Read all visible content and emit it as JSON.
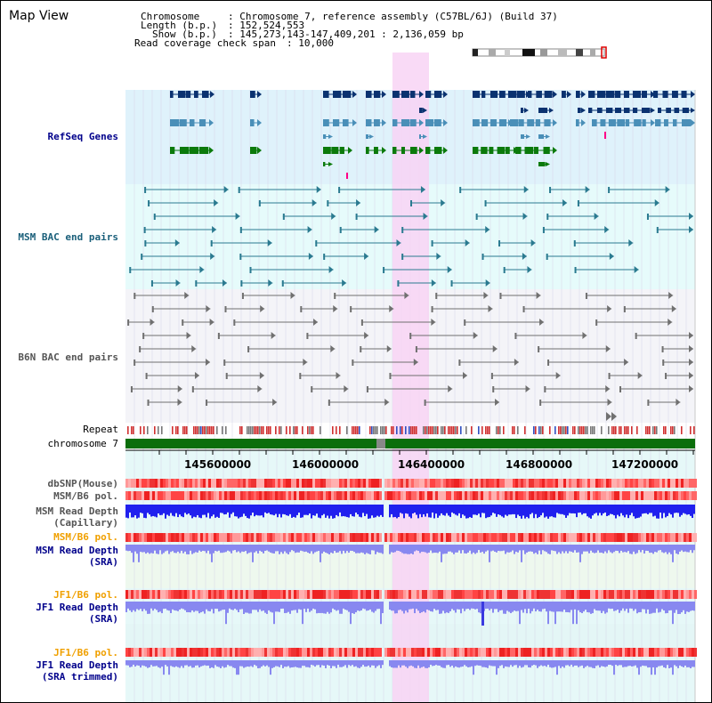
{
  "title": "Map View",
  "header": {
    "chromosome_label": "Chromosome",
    "chromosome_value": ": Chromosome 7, reference assembly (C57BL/6J) (Build 37)",
    "length_label": "Length (b.p.)",
    "length_value": ": 152,524,553",
    "show_label": "Show (b.p.)",
    "show_value": ": 145,273,143-147,409,201 : 2,136,059 bp",
    "span_label": "Read coverage check span",
    "span_value": ": 10,000"
  },
  "tracks": {
    "refseq": "RefSeq Genes",
    "msm_bac": "MSM BAC end pairs",
    "b6n_bac": "B6N BAC end pairs",
    "repeat": "Repeat",
    "chromosome": "chromosome 7",
    "dbsnp": "dbSNP(Mouse)",
    "msm_b6_pol": "MSM/B6 pol.",
    "msm_read_depth_cap_1": "MSM Read Depth",
    "msm_read_depth_cap_2": "(Capillary)",
    "msm_b6_pol_2": "MSM/B6 pol.",
    "msm_read_depth_sra_1": "MSM Read Depth",
    "msm_read_depth_sra_2": "(SRA)",
    "jf1_b6_pol": "JF1/B6 pol.",
    "jf1_read_depth_sra_1": "JF1 Read Depth",
    "jf1_read_depth_sra_2": "(SRA)",
    "jf1_b6_pol_2": "JF1/B6 pol.",
    "jf1_read_depth_trim_1": "JF1 Read Depth",
    "jf1_read_depth_trim_2": "(SRA trimmed)"
  },
  "axis": {
    "ticks": [
      "145600000",
      "146000000",
      "146400000",
      "146800000",
      "147200000"
    ]
  },
  "colors": {
    "refseq_bg": "#dff2fb",
    "msm_bg": "#e6fbfb",
    "b6n_bg": "#f4f4f8",
    "highlight": "#f8d4f4",
    "chromosome_bar": "#0b6e0b",
    "navy": "#0a3270",
    "steel": "#4a8fb8",
    "green": "#0b7a0b",
    "teal": "#2a7a90",
    "gray": "#707070",
    "pol_red": "#ee3333",
    "depth_blue": "#2020ee",
    "depth_light": "#8888f0",
    "label_blue": "#00008b",
    "label_teal": "#1a5f7a",
    "label_orange": "#f0a000",
    "label_gray": "#555555"
  }
}
